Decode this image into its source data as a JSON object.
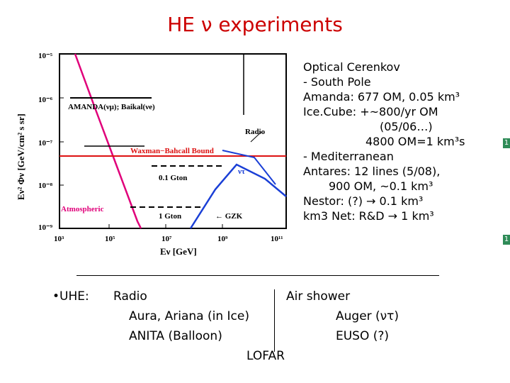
{
  "slide": {
    "title": "HE ν experiments"
  },
  "plot": {
    "ylabel": "Eν² Φν [GeV/cm² s sr]",
    "xlabel": "Eν [GeV]",
    "y_ticks": [
      "10⁻⁵",
      "10⁻⁶",
      "10⁻⁷",
      "10⁻⁸",
      "10⁻⁹"
    ],
    "x_ticks": [
      "10³",
      "10⁵",
      "10⁷",
      "10⁹",
      "10¹¹"
    ],
    "labels": {
      "amanda": "AMANDA(νμ); Baikal(νe)",
      "radio": "Radio",
      "wb": "Waxman−Bahcall Bound",
      "nutau": "ντ",
      "gton01": "0.1 Gton",
      "atm": "Atmospheric",
      "gton1": "1 Gton",
      "gzk": "← GZK"
    }
  },
  "optical": {
    "heading": "Optical Cerenkov",
    "south_pole": "- South Pole",
    "amanda": "Amanda:   677 OM, 0.05 km³",
    "icecube_1": "Ice.Cube: +~800/yr OM",
    "icecube_2": "(05/06…)",
    "icecube_3": "4800 OM=1 km³s",
    "med": "- Mediterranean",
    "antares_1": "Antares:  12 lines (5/08),",
    "antares_2": "900 OM, ~0.1 km³",
    "nestor": "Nestor:   (?) → 0.1 km³",
    "km3net": "km3 Net:  R&D → 1 km³"
  },
  "uhe": {
    "bullet": "•UHE:",
    "radio": "Radio",
    "aura": "Aura, Ariana (in Ice)",
    "anita": "ANITA  (Balloon)",
    "lofar": "LOFAR",
    "air": "Air shower",
    "auger": "Auger (ντ)",
    "euso": "EUSO (?)"
  },
  "side_marks": [
    "1",
    "1"
  ],
  "colors": {
    "title": "#cc0000",
    "magenta": "#e0007a",
    "red": "#dd1111",
    "blue": "#1a3fd6"
  }
}
